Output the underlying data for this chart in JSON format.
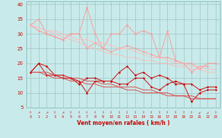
{
  "xlabel": "Vent moyen/en rafales ( km/h )",
  "x": [
    0,
    1,
    2,
    3,
    4,
    5,
    6,
    7,
    8,
    9,
    10,
    11,
    12,
    13,
    14,
    15,
    16,
    17,
    18,
    19,
    20,
    21,
    22,
    23
  ],
  "light_pink_line1": [
    33,
    31,
    30,
    29,
    28,
    30,
    30,
    39,
    30,
    25,
    30,
    30,
    33,
    30,
    31,
    30,
    22,
    31,
    21,
    20,
    17,
    19,
    19,
    null
  ],
  "light_pink_line2": [
    33,
    35,
    30,
    29,
    28,
    30,
    30,
    25,
    27,
    25,
    24,
    25,
    26,
    25,
    24,
    23,
    22,
    22,
    21,
    20,
    20,
    18,
    20,
    20
  ],
  "light_pink_trend1": [
    33,
    32,
    31,
    30,
    29,
    28,
    27,
    26,
    25,
    24,
    23,
    23,
    22,
    22,
    21,
    21,
    20,
    20,
    19,
    19,
    18,
    18,
    17,
    17
  ],
  "light_pink_trend2": [
    33,
    32,
    31,
    31,
    30,
    29,
    28,
    28,
    27,
    27,
    26,
    25,
    25,
    24,
    23,
    22,
    22,
    21,
    20,
    20,
    19,
    19,
    18,
    18
  ],
  "dark_red_line1": [
    17,
    20,
    19,
    16,
    16,
    15,
    13,
    15,
    15,
    14,
    14,
    17,
    19,
    16,
    17,
    15,
    16,
    15,
    13,
    13,
    7,
    10,
    11,
    11
  ],
  "dark_red_line2": [
    17,
    20,
    16,
    16,
    15,
    15,
    14,
    10,
    14,
    14,
    14,
    13,
    13,
    15,
    15,
    12,
    11,
    13,
    14,
    13,
    13,
    11,
    12,
    12
  ],
  "dark_red_trend1": [
    17,
    17,
    16,
    15,
    15,
    14,
    14,
    13,
    13,
    12,
    12,
    12,
    11,
    11,
    10,
    10,
    10,
    9,
    9,
    9,
    8,
    8,
    8,
    8
  ],
  "dark_red_trend2": [
    17,
    17,
    17,
    16,
    16,
    15,
    15,
    14,
    14,
    13,
    13,
    12,
    12,
    12,
    11,
    11,
    10,
    10,
    9,
    9,
    9,
    8,
    8,
    8
  ],
  "ylim": [
    5,
    41
  ],
  "yticks": [
    5,
    10,
    15,
    20,
    25,
    30,
    35,
    40
  ],
  "bg_color": "#c8eaea",
  "grid_color": "#9fbfbf",
  "light_pink_color": "#ff9999",
  "dark_red_color": "#cc0000",
  "trend_color_light": "#ffbbbb",
  "trend_color_dark": "#dd4444",
  "arrow_labels": [
    "↑",
    "↗",
    "↗",
    "↑",
    "↗",
    "↑",
    "↑",
    "↑",
    "↑",
    "↑",
    "↑",
    "↑",
    "↑",
    "↑",
    "↑",
    "↑",
    "↑",
    "↑",
    "↑",
    "↑",
    "↑",
    "↙",
    "↙",
    "↑"
  ]
}
